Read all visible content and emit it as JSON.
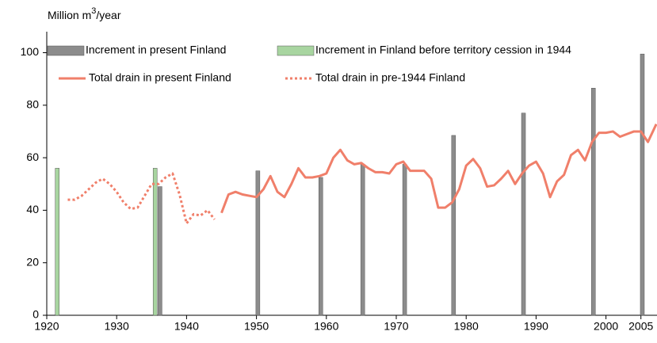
{
  "chart_data": {
    "type": "bar-line",
    "y_axis_label": [
      "Million m",
      "3",
      "/year"
    ],
    "xlim": [
      1920,
      2007.3
    ],
    "xticks": [
      1920,
      1930,
      1940,
      1950,
      1960,
      1970,
      1980,
      1990,
      2000,
      2005
    ],
    "ylim": [
      0,
      108
    ],
    "yticks": [
      0,
      20,
      40,
      60,
      80,
      100
    ],
    "grid": false,
    "legend": "top",
    "series": [
      {
        "name": "Increment in present Finland",
        "type": "bar",
        "color": "#8c8c8c",
        "x": [
          1936.2,
          1950.2,
          1959.2,
          1965.2,
          1971.2,
          1978.2,
          1988.2,
          1998.2,
          2005.2
        ],
        "values": [
          49,
          55,
          52.5,
          57.5,
          57.5,
          68.5,
          77,
          86.5,
          99.5
        ]
      },
      {
        "name": "Increment in Finland before territory cession in 1944",
        "type": "bar",
        "color": "#a8d5a0",
        "x": [
          1921.5,
          1935.5
        ],
        "values": [
          56,
          56
        ]
      },
      {
        "name": "Total drain in present Finland",
        "type": "line",
        "dash": false,
        "color": "#f07f6a",
        "x": [
          1945,
          1946,
          1947,
          1948,
          1949,
          1950,
          1951,
          1952,
          1953,
          1954,
          1955,
          1956,
          1957,
          1958,
          1959,
          1960,
          1961,
          1962,
          1963,
          1964,
          1965,
          1966,
          1967,
          1968,
          1969,
          1970,
          1971,
          1972,
          1973,
          1974,
          1975,
          1976,
          1977,
          1978,
          1979,
          1980,
          1981,
          1982,
          1983,
          1984,
          1985,
          1986,
          1987,
          1988,
          1989,
          1990,
          1991,
          1992,
          1993,
          1994,
          1995,
          1996,
          1997,
          1998,
          1999,
          2000,
          2001,
          2002,
          2003,
          2004,
          2005,
          2006,
          2007.2
        ],
        "values": [
          39,
          46,
          47,
          46,
          45.5,
          45,
          48,
          53,
          47,
          45,
          50,
          56,
          52.5,
          52.5,
          53,
          54,
          60,
          63,
          59,
          57.5,
          58,
          56,
          54.5,
          54.5,
          54,
          57.5,
          58.5,
          55,
          55,
          55,
          52,
          41,
          41,
          43,
          48,
          57,
          59.5,
          56,
          49,
          49.5,
          52,
          55,
          50,
          54,
          57,
          58.5,
          54,
          45,
          51,
          53.5,
          61,
          63,
          59,
          66,
          69.5,
          69.5,
          70,
          68,
          69,
          70,
          70,
          66,
          72.8
        ]
      },
      {
        "name": "Total drain in pre-1944 Finland",
        "type": "line",
        "dash": true,
        "color": "#f07f6a",
        "x": [
          1923,
          1924,
          1925,
          1926,
          1927,
          1928,
          1929,
          1930,
          1931,
          1932,
          1933,
          1934,
          1935,
          1936,
          1937,
          1938,
          1939,
          1940,
          1941,
          1942,
          1943,
          1944
        ],
        "values": [
          44,
          44,
          45.5,
          48,
          50.5,
          52,
          50,
          47,
          43,
          40.5,
          41,
          45.5,
          50,
          50,
          52.5,
          54,
          46,
          35,
          38.5,
          38,
          40,
          36.5
        ]
      }
    ]
  }
}
